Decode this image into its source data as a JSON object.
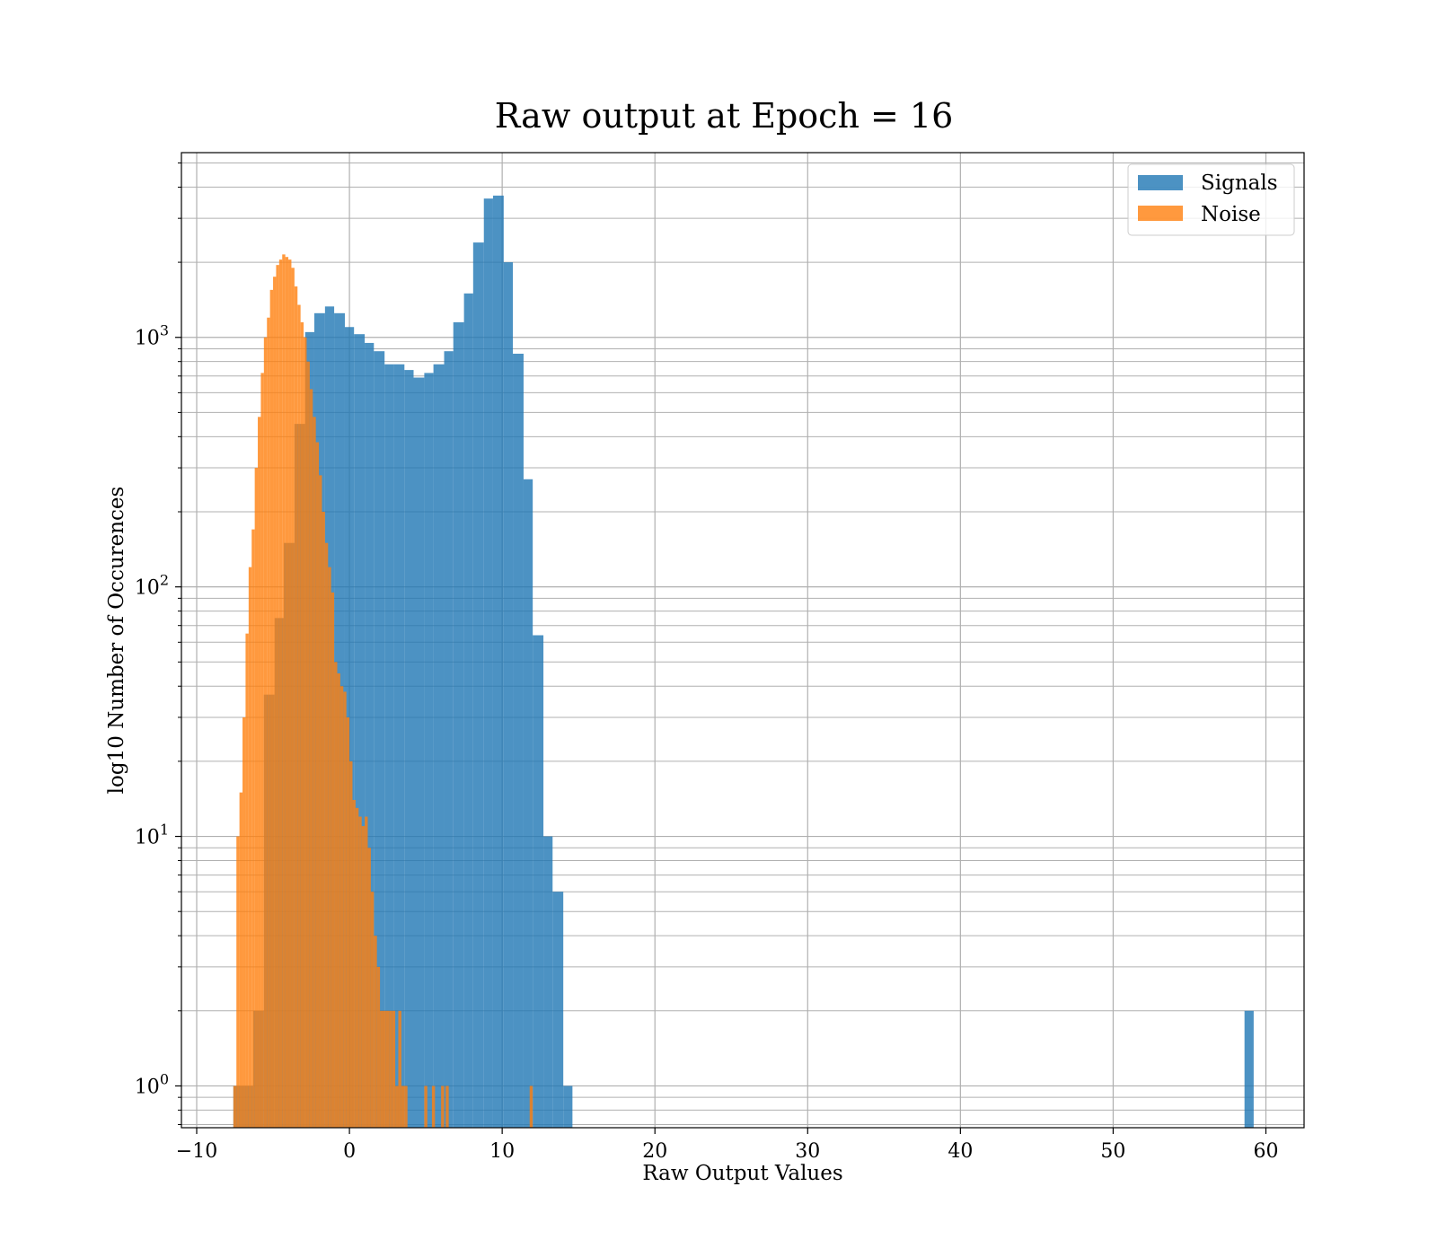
{
  "chart_data": {
    "type": "bar",
    "title": "Raw output at Epoch = 16",
    "xlabel": "Raw Output Values",
    "ylabel": "log10 Number of Occurences",
    "xlim": [
      -11,
      62.5
    ],
    "ylim": [
      0.68,
      5500
    ],
    "yscale": "log",
    "grid": true,
    "legend_position": "top-right",
    "x_ticks": [
      -10,
      0,
      10,
      20,
      30,
      40,
      50,
      60
    ],
    "x_tick_labels": [
      "−10",
      "0",
      "10",
      "20",
      "30",
      "40",
      "50",
      "60"
    ],
    "y_ticks": [
      1,
      10,
      100,
      1000
    ],
    "y_tick_labels": [
      {
        "base": "10",
        "exp": "0"
      },
      {
        "base": "10",
        "exp": "1"
      },
      {
        "base": "10",
        "exp": "2"
      },
      {
        "base": "10",
        "exp": "3"
      }
    ],
    "series": [
      {
        "name": "Signals",
        "color": "#1f77b4",
        "opacity": 0.8,
        "bins": [
          [
            -7.6,
            -6.3,
            1
          ],
          [
            -6.3,
            -5.6,
            2
          ],
          [
            -5.6,
            -4.9,
            37
          ],
          [
            -4.9,
            -4.3,
            75
          ],
          [
            -4.3,
            -3.6,
            150
          ],
          [
            -3.6,
            -2.9,
            450
          ],
          [
            -2.9,
            -2.3,
            1050
          ],
          [
            -2.3,
            -1.6,
            1250
          ],
          [
            -1.6,
            -1.0,
            1330
          ],
          [
            -1.0,
            -0.3,
            1250
          ],
          [
            -0.3,
            0.3,
            1100
          ],
          [
            0.3,
            1.0,
            1030
          ],
          [
            1.0,
            1.6,
            950
          ],
          [
            1.6,
            2.3,
            880
          ],
          [
            2.3,
            2.9,
            780
          ],
          [
            2.9,
            3.6,
            780
          ],
          [
            3.6,
            4.2,
            740
          ],
          [
            4.2,
            4.9,
            690
          ],
          [
            4.9,
            5.5,
            720
          ],
          [
            5.5,
            6.2,
            780
          ],
          [
            6.2,
            6.8,
            880
          ],
          [
            6.8,
            7.5,
            1150
          ],
          [
            7.5,
            8.1,
            1500
          ],
          [
            8.1,
            8.8,
            2400
          ],
          [
            8.8,
            9.4,
            3600
          ],
          [
            9.4,
            10.1,
            3700
          ],
          [
            10.1,
            10.7,
            2000
          ],
          [
            10.7,
            11.4,
            860
          ],
          [
            11.4,
            12.0,
            270
          ],
          [
            12.0,
            12.7,
            64
          ],
          [
            12.7,
            13.3,
            10
          ],
          [
            13.3,
            14.0,
            6
          ],
          [
            14.0,
            14.6,
            1
          ],
          [
            58.6,
            59.2,
            2
          ]
        ]
      },
      {
        "name": "Noise",
        "color": "#ff7f0e",
        "opacity": 0.8,
        "bins": [
          [
            -7.6,
            -7.4,
            1
          ],
          [
            -7.4,
            -7.2,
            10
          ],
          [
            -7.2,
            -7.0,
            15
          ],
          [
            -7.0,
            -6.8,
            30
          ],
          [
            -6.8,
            -6.6,
            65
          ],
          [
            -6.6,
            -6.4,
            120
          ],
          [
            -6.4,
            -6.2,
            170
          ],
          [
            -6.2,
            -6.0,
            300
          ],
          [
            -6.0,
            -5.8,
            480
          ],
          [
            -5.8,
            -5.6,
            720
          ],
          [
            -5.6,
            -5.4,
            1000
          ],
          [
            -5.4,
            -5.2,
            1200
          ],
          [
            -5.2,
            -5.0,
            1550
          ],
          [
            -5.0,
            -4.8,
            1750
          ],
          [
            -4.8,
            -4.6,
            1950
          ],
          [
            -4.6,
            -4.4,
            2050
          ],
          [
            -4.4,
            -4.2,
            2150
          ],
          [
            -4.2,
            -4.0,
            2100
          ],
          [
            -4.0,
            -3.8,
            2050
          ],
          [
            -3.8,
            -3.6,
            1900
          ],
          [
            -3.6,
            -3.4,
            1600
          ],
          [
            -3.4,
            -3.2,
            1350
          ],
          [
            -3.2,
            -3.0,
            1150
          ],
          [
            -3.0,
            -2.8,
            1000
          ],
          [
            -2.8,
            -2.6,
            800
          ],
          [
            -2.6,
            -2.4,
            620
          ],
          [
            -2.4,
            -2.2,
            480
          ],
          [
            -2.2,
            -2.0,
            380
          ],
          [
            -2.0,
            -1.8,
            280
          ],
          [
            -1.8,
            -1.6,
            200
          ],
          [
            -1.6,
            -1.4,
            150
          ],
          [
            -1.4,
            -1.2,
            120
          ],
          [
            -1.2,
            -1.0,
            95
          ],
          [
            -1.0,
            -0.8,
            50
          ],
          [
            -0.8,
            -0.6,
            45
          ],
          [
            -0.6,
            -0.4,
            40
          ],
          [
            -0.4,
            -0.2,
            38
          ],
          [
            -0.2,
            0.0,
            30
          ],
          [
            0.0,
            0.2,
            20
          ],
          [
            0.2,
            0.4,
            14
          ],
          [
            0.4,
            0.6,
            13
          ],
          [
            0.6,
            0.8,
            12
          ],
          [
            0.8,
            1.0,
            11
          ],
          [
            1.0,
            1.2,
            12
          ],
          [
            1.2,
            1.4,
            9
          ],
          [
            1.4,
            1.6,
            6
          ],
          [
            1.6,
            1.8,
            4
          ],
          [
            1.8,
            2.0,
            3
          ],
          [
            2.0,
            2.2,
            2
          ],
          [
            2.2,
            2.4,
            2
          ],
          [
            2.4,
            2.6,
            2
          ],
          [
            2.6,
            2.8,
            2
          ],
          [
            2.8,
            3.0,
            2
          ],
          [
            3.0,
            3.2,
            1
          ],
          [
            3.2,
            3.4,
            2
          ],
          [
            3.4,
            3.6,
            1
          ],
          [
            3.6,
            3.8,
            1
          ],
          [
            4.9,
            5.1,
            1
          ],
          [
            5.4,
            5.6,
            1
          ],
          [
            6.0,
            6.2,
            1
          ],
          [
            6.3,
            6.5,
            1
          ],
          [
            11.8,
            12.0,
            1
          ]
        ]
      }
    ]
  }
}
